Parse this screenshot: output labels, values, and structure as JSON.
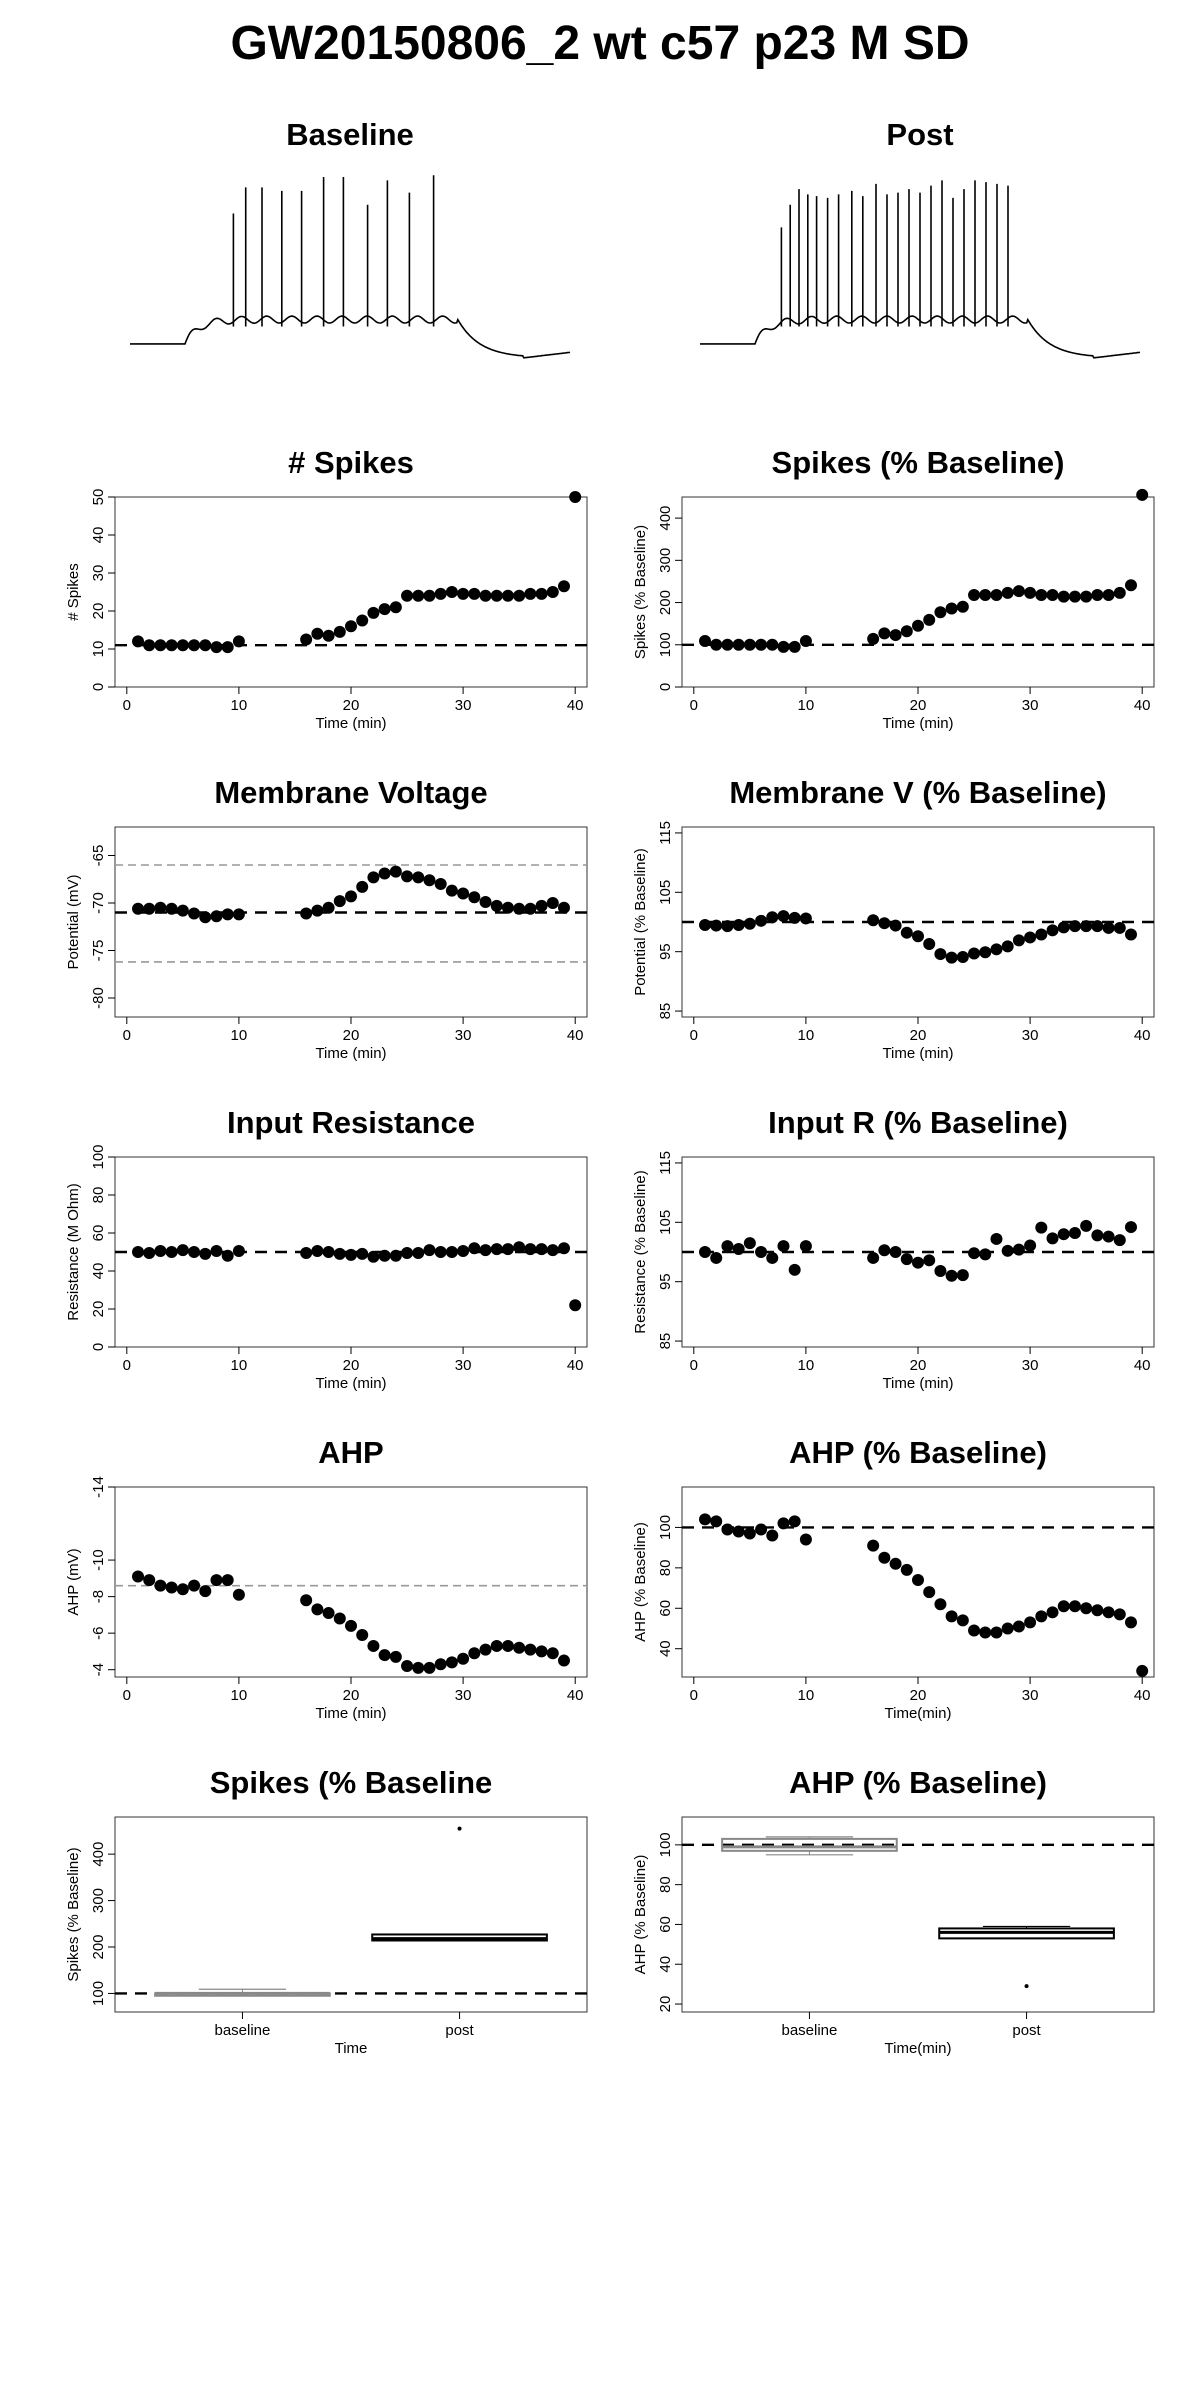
{
  "page": {
    "title": "GW20150806_2 wt c57 p23 M SD"
  },
  "chart_data": [
    {
      "id": "trace-baseline",
      "type": "line",
      "title": "Baseline",
      "xlabel": "",
      "ylabel": "",
      "axes": false,
      "ylim": [
        -85,
        30
      ],
      "xlim": [
        0,
        1
      ],
      "trace": {
        "rest": -70,
        "step_on": 0.125,
        "step_off": 0.745,
        "plateau": -56,
        "trough": -78,
        "spike_times": [
          0.235,
          0.263,
          0.3,
          0.345,
          0.39,
          0.44,
          0.485,
          0.54,
          0.585,
          0.635,
          0.69
        ],
        "spike_peaks": [
          5,
          20,
          20,
          18,
          18,
          26,
          26,
          10,
          24,
          17,
          27
        ]
      }
    },
    {
      "id": "trace-post",
      "type": "line",
      "title": "Post",
      "xlabel": "",
      "ylabel": "",
      "axes": false,
      "ylim": [
        -85,
        30
      ],
      "xlim": [
        0,
        1
      ],
      "trace": {
        "rest": -70,
        "step_on": 0.125,
        "step_off": 0.745,
        "plateau": -56,
        "trough": -78,
        "spike_times": [
          0.185,
          0.205,
          0.225,
          0.245,
          0.265,
          0.29,
          0.315,
          0.345,
          0.37,
          0.4,
          0.425,
          0.45,
          0.475,
          0.5,
          0.525,
          0.55,
          0.575,
          0.6,
          0.625,
          0.65,
          0.675,
          0.7
        ],
        "spike_peaks": [
          -3,
          10,
          19,
          16,
          15,
          14,
          16,
          18,
          15,
          22,
          16,
          17,
          19,
          17,
          21,
          24,
          14,
          19,
          24,
          23,
          22,
          21
        ]
      }
    },
    {
      "id": "spikes",
      "type": "scatter",
      "title": "# Spikes",
      "xlabel": "Time (min)",
      "ylabel": "# Spikes",
      "xlim": [
        0,
        40
      ],
      "ylim": [
        0,
        50
      ],
      "xticks": [
        0,
        10,
        20,
        30,
        40
      ],
      "yticks": [
        0,
        10,
        20,
        30,
        40,
        50
      ],
      "hlines": [
        {
          "y": 11,
          "style": "dashed-black"
        }
      ],
      "x": [
        1,
        2,
        3,
        4,
        5,
        6,
        7,
        8,
        9,
        10,
        16,
        17,
        18,
        19,
        20,
        21,
        22,
        23,
        24,
        25,
        26,
        27,
        28,
        29,
        30,
        31,
        32,
        33,
        34,
        35,
        36,
        37,
        38,
        39,
        40
      ],
      "y": [
        12,
        11,
        11,
        11,
        11,
        11,
        11,
        10.5,
        10.5,
        12,
        12.5,
        14,
        13.5,
        14.5,
        16,
        17.5,
        19.5,
        20.5,
        21,
        24,
        24,
        24,
        24.5,
        25,
        24.5,
        24.5,
        24,
        24,
        24,
        24,
        24.5,
        24.5,
        25,
        26.5,
        50
      ]
    },
    {
      "id": "spikes-pct",
      "type": "scatter",
      "title": "Spikes (% Baseline)",
      "xlabel": "Time (min)",
      "ylabel": "Spikes (% Baseline)",
      "xlim": [
        0,
        40
      ],
      "ylim": [
        0,
        450
      ],
      "xticks": [
        0,
        10,
        20,
        30,
        40
      ],
      "yticks": [
        0,
        100,
        200,
        300,
        400
      ],
      "hlines": [
        {
          "y": 100,
          "style": "dashed-black"
        }
      ],
      "x": [
        1,
        2,
        3,
        4,
        5,
        6,
        7,
        8,
        9,
        10,
        16,
        17,
        18,
        19,
        20,
        21,
        22,
        23,
        24,
        25,
        26,
        27,
        28,
        29,
        30,
        31,
        32,
        33,
        34,
        35,
        36,
        37,
        38,
        39,
        40
      ],
      "y": [
        109,
        100,
        100,
        100,
        100,
        100,
        100,
        95,
        95,
        109,
        114,
        127,
        123,
        132,
        145,
        159,
        177,
        186,
        190,
        218,
        218,
        218,
        223,
        227,
        223,
        218,
        218,
        214,
        214,
        214,
        218,
        218,
        223,
        241,
        455
      ]
    },
    {
      "id": "membrane-voltage",
      "type": "scatter",
      "title": "Membrane Voltage",
      "xlabel": "Time (min)",
      "ylabel": "Potential (mV)",
      "xlim": [
        0,
        40
      ],
      "ylim": [
        -82,
        -62
      ],
      "xticks": [
        0,
        10,
        20,
        30,
        40
      ],
      "yticks": [
        -80,
        -75,
        -70,
        -65
      ],
      "hlines": [
        {
          "y": -71,
          "style": "dashed-black"
        },
        {
          "y": -66,
          "style": "dashed-gray"
        },
        {
          "y": -76.2,
          "style": "dashed-gray"
        }
      ],
      "x": [
        1,
        2,
        3,
        4,
        5,
        6,
        7,
        8,
        9,
        10,
        16,
        17,
        18,
        19,
        20,
        21,
        22,
        23,
        24,
        25,
        26,
        27,
        28,
        29,
        30,
        31,
        32,
        33,
        34,
        35,
        36,
        37,
        38,
        39
      ],
      "y": [
        -70.6,
        -70.6,
        -70.5,
        -70.6,
        -70.8,
        -71.1,
        -71.5,
        -71.4,
        -71.2,
        -71.2,
        -71.1,
        -70.8,
        -70.5,
        -69.8,
        -69.3,
        -68.3,
        -67.3,
        -66.9,
        -66.7,
        -67.2,
        -67.3,
        -67.6,
        -68.0,
        -68.7,
        -69.0,
        -69.4,
        -69.9,
        -70.3,
        -70.5,
        -70.6,
        -70.6,
        -70.3,
        -70.0,
        -70.5
      ]
    },
    {
      "id": "membrane-v-pct",
      "type": "scatter",
      "title": "Membrane V (% Baseline)",
      "xlabel": "Time (min)",
      "ylabel": "Potential (% Baseline)",
      "xlim": [
        0,
        40
      ],
      "ylim": [
        84,
        116
      ],
      "xticks": [
        0,
        10,
        20,
        30,
        40
      ],
      "yticks": [
        85,
        95,
        105,
        115
      ],
      "hlines": [
        {
          "y": 100,
          "style": "dashed-black"
        }
      ],
      "x": [
        1,
        2,
        3,
        4,
        5,
        6,
        7,
        8,
        9,
        10,
        16,
        17,
        18,
        19,
        20,
        21,
        22,
        23,
        24,
        25,
        26,
        27,
        28,
        29,
        30,
        31,
        32,
        33,
        34,
        35,
        36,
        37,
        38,
        39
      ],
      "y": [
        99.5,
        99.4,
        99.3,
        99.5,
        99.7,
        100.2,
        100.8,
        101.0,
        100.7,
        100.6,
        100.3,
        99.8,
        99.4,
        98.2,
        97.6,
        96.3,
        94.6,
        94.0,
        94.1,
        94.7,
        94.9,
        95.4,
        95.9,
        96.9,
        97.4,
        97.9,
        98.6,
        99.1,
        99.3,
        99.3,
        99.3,
        99.0,
        99.0,
        97.9
      ]
    },
    {
      "id": "input-resistance",
      "type": "scatter",
      "title": "Input Resistance",
      "xlabel": "Time (min)",
      "ylabel": "Resistance (M Ohm)",
      "xlim": [
        0,
        40
      ],
      "ylim": [
        0,
        100
      ],
      "xticks": [
        0,
        10,
        20,
        30,
        40
      ],
      "yticks": [
        0,
        20,
        40,
        60,
        80,
        100
      ],
      "hlines": [
        {
          "y": 50,
          "style": "dashed-black"
        }
      ],
      "x": [
        1,
        2,
        3,
        4,
        5,
        6,
        7,
        8,
        9,
        10,
        16,
        17,
        18,
        19,
        20,
        21,
        22,
        23,
        24,
        25,
        26,
        27,
        28,
        29,
        30,
        31,
        32,
        33,
        34,
        35,
        36,
        37,
        38,
        39,
        40
      ],
      "y": [
        50,
        49.5,
        50.5,
        50,
        51,
        50,
        49,
        50.5,
        48,
        50.5,
        49.5,
        50.5,
        50,
        49,
        48.5,
        49,
        47.5,
        48,
        48,
        49.5,
        49.5,
        51,
        50,
        50,
        50.5,
        52,
        51,
        51.5,
        51.5,
        52.5,
        51.5,
        51.5,
        51,
        52,
        22
      ]
    },
    {
      "id": "input-r-pct",
      "type": "scatter",
      "title": "Input R (% Baseline)",
      "xlabel": "Time (min)",
      "ylabel": "Resistance (% Baseline)",
      "xlim": [
        0,
        40
      ],
      "ylim": [
        84,
        116
      ],
      "xticks": [
        0,
        10,
        20,
        30,
        40
      ],
      "yticks": [
        85,
        95,
        105,
        115
      ],
      "hlines": [
        {
          "y": 100,
          "style": "dashed-black"
        }
      ],
      "x": [
        1,
        2,
        3,
        4,
        5,
        6,
        7,
        8,
        9,
        10,
        16,
        17,
        18,
        19,
        20,
        21,
        22,
        23,
        24,
        25,
        26,
        27,
        28,
        29,
        30,
        31,
        32,
        33,
        34,
        35,
        36,
        37,
        38,
        39
      ],
      "y": [
        100,
        99,
        101,
        100.5,
        101.5,
        100,
        99,
        101,
        97,
        101,
        99,
        100.3,
        100,
        98.8,
        98.2,
        98.6,
        96.8,
        96,
        96.1,
        99.8,
        99.6,
        102.2,
        100.2,
        100.4,
        101.1,
        104.1,
        102.3,
        103,
        103.2,
        104.4,
        102.8,
        102.6,
        102,
        104.2
      ]
    },
    {
      "id": "ahp",
      "type": "scatter",
      "title": "AHP",
      "xlabel": "Time (min)",
      "ylabel": "AHP (mV)",
      "xlim": [
        0,
        40
      ],
      "ylim": [
        -3.6,
        -14
      ],
      "xticks": [
        0,
        10,
        20,
        30,
        40
      ],
      "yticks": [
        -4,
        -6,
        -8,
        -10,
        -14
      ],
      "hlines": [
        {
          "y": -8.6,
          "style": "dashed-gray"
        }
      ],
      "x": [
        1,
        2,
        3,
        4,
        5,
        6,
        7,
        8,
        9,
        10,
        16,
        17,
        18,
        19,
        20,
        21,
        22,
        23,
        24,
        25,
        26,
        27,
        28,
        29,
        30,
        31,
        32,
        33,
        34,
        35,
        36,
        37,
        38,
        39
      ],
      "y": [
        -9.1,
        -8.9,
        -8.6,
        -8.5,
        -8.4,
        -8.6,
        -8.3,
        -8.9,
        -8.9,
        -8.1,
        -7.8,
        -7.3,
        -7.1,
        -6.8,
        -6.4,
        -5.9,
        -5.3,
        -4.8,
        -4.7,
        -4.2,
        -4.1,
        -4.1,
        -4.3,
        -4.4,
        -4.6,
        -4.9,
        -5.1,
        -5.3,
        -5.3,
        -5.2,
        -5.1,
        -5.0,
        -4.9,
        -4.5
      ]
    },
    {
      "id": "ahp-pct",
      "type": "scatter",
      "title": "AHP (% Baseline)",
      "xlabel": "Time(min)",
      "ylabel": "AHP (% Baseline)",
      "xlim": [
        0,
        40
      ],
      "ylim": [
        26,
        120
      ],
      "xticks": [
        0,
        10,
        20,
        30,
        40
      ],
      "yticks": [
        40,
        60,
        80,
        100
      ],
      "hlines": [
        {
          "y": 100,
          "style": "dashed-black"
        }
      ],
      "x": [
        1,
        2,
        3,
        4,
        5,
        6,
        7,
        8,
        9,
        10,
        16,
        17,
        18,
        19,
        20,
        21,
        22,
        23,
        24,
        25,
        26,
        27,
        28,
        29,
        30,
        31,
        32,
        33,
        34,
        35,
        36,
        37,
        38,
        39,
        40
      ],
      "y": [
        104,
        103,
        99,
        98,
        97,
        99,
        96,
        102,
        103,
        94,
        91,
        85,
        82,
        79,
        74,
        68,
        62,
        56,
        54,
        49,
        48,
        48,
        50,
        51,
        53,
        56,
        58,
        61,
        61,
        60,
        59,
        58,
        57,
        53,
        29
      ]
    },
    {
      "id": "spikes-box",
      "type": "box",
      "title": "Spikes (% Baseline",
      "xlabel": "Time",
      "ylabel": "Spikes (% Baseline)",
      "categories": [
        "baseline",
        "post"
      ],
      "ylim": [
        60,
        480
      ],
      "yticks": [
        100,
        200,
        300,
        400
      ],
      "hlines": [
        {
          "y": 100,
          "style": "dashed-black"
        }
      ],
      "boxes": [
        {
          "q1": 95,
          "median": 100,
          "q3": 100,
          "whisker_low": 95,
          "whisker_high": 109,
          "outliers": [],
          "color": "#888888"
        },
        {
          "q1": 214,
          "median": 218,
          "q3": 227,
          "whisker_low": 214,
          "whisker_high": 227,
          "outliers": [
            455
          ],
          "color": "#000000"
        }
      ]
    },
    {
      "id": "ahp-box",
      "type": "box",
      "title": "AHP (% Baseline)",
      "xlabel": "Time(min)",
      "ylabel": "AHP (% Baseline)",
      "categories": [
        "baseline",
        "post"
      ],
      "ylim": [
        16,
        114
      ],
      "yticks": [
        20,
        40,
        60,
        80,
        100
      ],
      "hlines": [
        {
          "y": 100,
          "style": "dashed-black"
        }
      ],
      "boxes": [
        {
          "q1": 97,
          "median": 99,
          "q3": 103,
          "whisker_low": 95,
          "whisker_high": 104,
          "outliers": [],
          "color": "#888888"
        },
        {
          "q1": 53,
          "median": 56,
          "q3": 58,
          "whisker_low": 53,
          "whisker_high": 59,
          "outliers": [
            29
          ],
          "color": "#000000"
        }
      ]
    }
  ]
}
